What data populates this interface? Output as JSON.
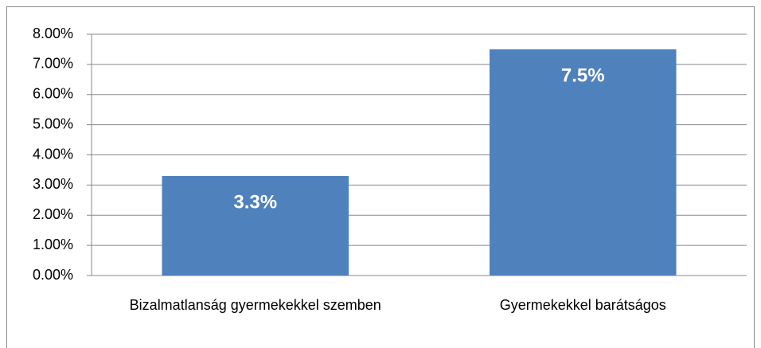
{
  "chart_data": {
    "type": "bar",
    "categories": [
      "Bizalmatlanság gyermekekkel szemben",
      "Gyermekekkel barátságos"
    ],
    "values": [
      3.3,
      7.5
    ],
    "value_labels": [
      "3.3%",
      "7.5%"
    ],
    "color": "#4f81bd",
    "ylim": [
      0,
      8
    ],
    "yticks": [
      {
        "value": 0,
        "label": "0.00%"
      },
      {
        "value": 1,
        "label": "1.00%"
      },
      {
        "value": 2,
        "label": "2.00%"
      },
      {
        "value": 3,
        "label": "3.00%"
      },
      {
        "value": 4,
        "label": "4.00%"
      },
      {
        "value": 5,
        "label": "5.00%"
      },
      {
        "value": 6,
        "label": "6.00%"
      },
      {
        "value": 7,
        "label": "7.00%"
      },
      {
        "value": 8,
        "label": "8.00%"
      }
    ],
    "grid": true
  }
}
